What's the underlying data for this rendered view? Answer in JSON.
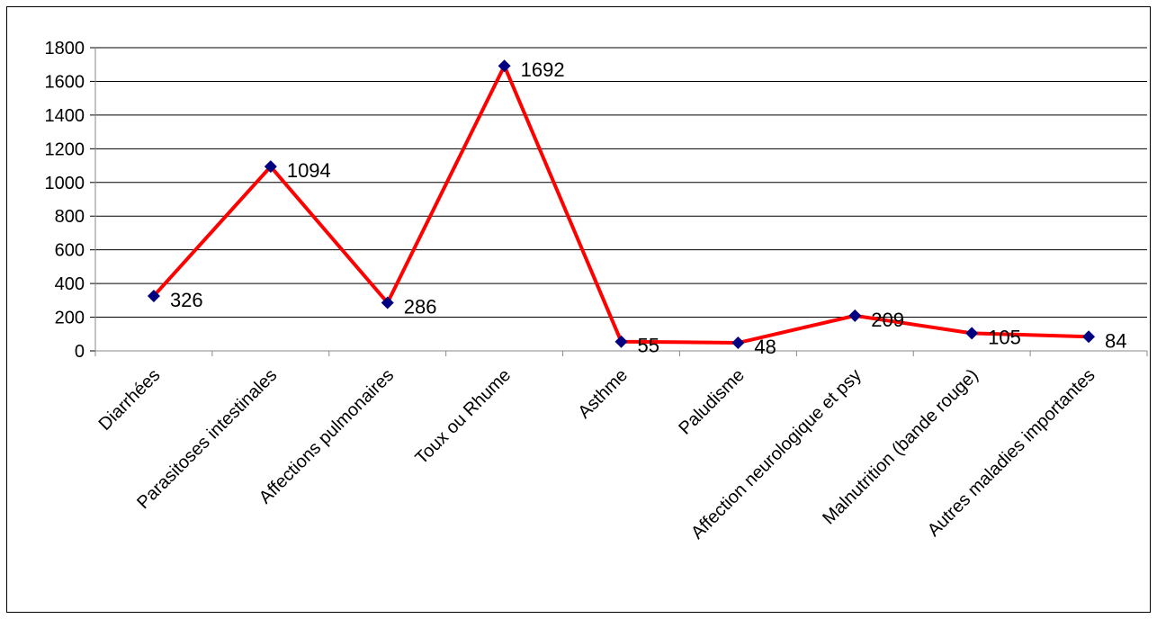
{
  "chart_data": {
    "type": "line",
    "title": "",
    "xlabel": "",
    "ylabel": "",
    "categories": [
      "Diarrhées",
      "Parasitoses intestinales",
      "Affections pulmonaires",
      "Toux ou  Rhume",
      "Asthme",
      "Paludisme",
      "Affection neurologique et psy",
      "Malnutrition (bande rouge)",
      "Autres maladies importantes"
    ],
    "series": [
      {
        "values": [
          326,
          1094,
          286,
          1692,
          55,
          48,
          209,
          105,
          84
        ],
        "line_color": "#ff0000",
        "marker_color": "#000080",
        "marker": "diamond"
      }
    ],
    "ylim": [
      0,
      1800
    ],
    "yticks": [
      "0",
      "200",
      "400",
      "600",
      "800",
      "1000",
      "1200",
      "1400",
      "1600",
      "1800"
    ],
    "data_labels": [
      "326",
      "1094",
      "286",
      "1692",
      "55",
      "48",
      "209",
      "105",
      "84"
    ],
    "grid": "horizontal",
    "legend": "none"
  }
}
